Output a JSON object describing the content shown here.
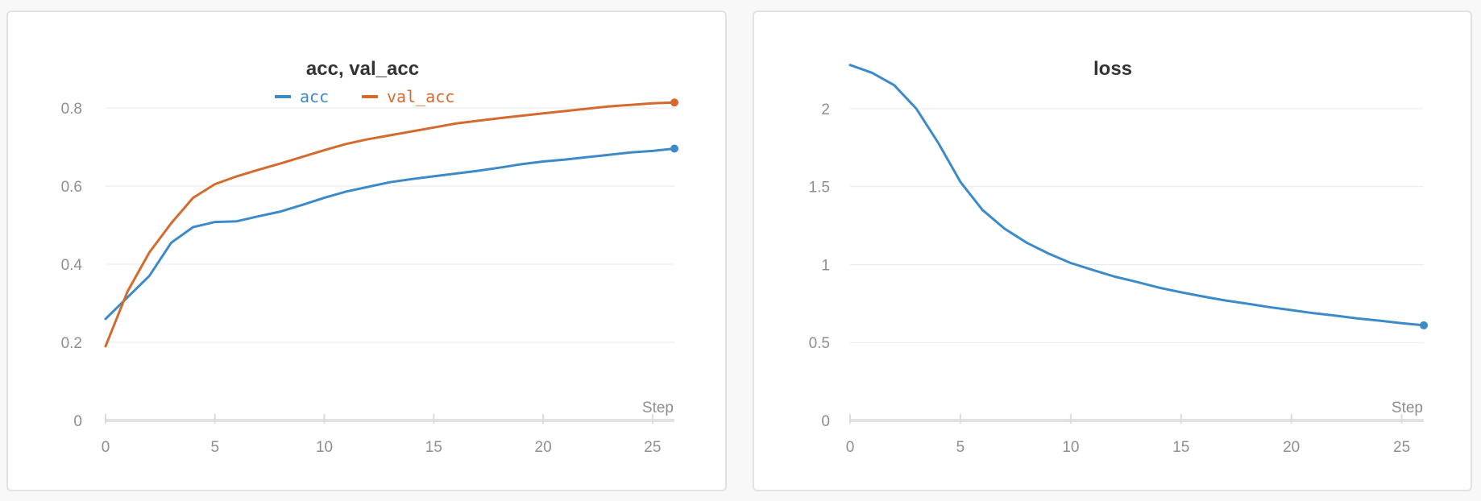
{
  "chart_data": [
    {
      "type": "line",
      "title": "acc, val_acc",
      "xlabel": "Step",
      "ylabel": "",
      "xlim": [
        0,
        26
      ],
      "ylim": [
        0,
        0.93
      ],
      "xticks": [
        0,
        5,
        10,
        15,
        20,
        25
      ],
      "yticks": [
        0,
        0.2,
        0.4,
        0.6,
        0.8
      ],
      "ytick_labels": [
        "0",
        "0.2",
        "0.4",
        "0.6",
        "0.8"
      ],
      "grid": true,
      "legend": "top",
      "x": [
        0,
        1,
        2,
        3,
        4,
        5,
        6,
        7,
        8,
        9,
        10,
        11,
        12,
        13,
        14,
        15,
        16,
        17,
        18,
        19,
        20,
        21,
        22,
        23,
        24,
        25,
        26
      ],
      "series": [
        {
          "name": "acc",
          "color": "#3d8ac9",
          "values": [
            0.26,
            0.315,
            0.37,
            0.455,
            0.495,
            0.508,
            0.51,
            0.523,
            0.535,
            0.552,
            0.57,
            0.586,
            0.598,
            0.61,
            0.618,
            0.625,
            0.632,
            0.639,
            0.647,
            0.656,
            0.663,
            0.668,
            0.674,
            0.68,
            0.686,
            0.69,
            0.696
          ]
        },
        {
          "name": "val_acc",
          "color": "#d56a2e",
          "values": [
            0.19,
            0.33,
            0.43,
            0.505,
            0.57,
            0.605,
            0.625,
            0.642,
            0.658,
            0.675,
            0.692,
            0.708,
            0.72,
            0.73,
            0.74,
            0.75,
            0.76,
            0.767,
            0.774,
            0.78,
            0.786,
            0.792,
            0.798,
            0.804,
            0.808,
            0.812,
            0.814
          ]
        }
      ]
    },
    {
      "type": "line",
      "title": "loss",
      "xlabel": "Step",
      "ylabel": "",
      "xlim": [
        0,
        26
      ],
      "ylim": [
        0,
        2.33
      ],
      "xticks": [
        0,
        5,
        10,
        15,
        20,
        25
      ],
      "yticks": [
        0,
        0.5,
        1,
        1.5,
        2
      ],
      "ytick_labels": [
        "0",
        "0.5",
        "1",
        "1.5",
        "2"
      ],
      "grid": true,
      "legend": "none",
      "x": [
        0,
        1,
        2,
        3,
        4,
        5,
        6,
        7,
        8,
        9,
        10,
        11,
        12,
        13,
        14,
        15,
        16,
        17,
        18,
        19,
        20,
        21,
        22,
        23,
        24,
        25,
        26
      ],
      "series": [
        {
          "name": "loss",
          "color": "#3d8ac9",
          "values": [
            2.28,
            2.23,
            2.15,
            2.0,
            1.78,
            1.53,
            1.35,
            1.23,
            1.14,
            1.07,
            1.01,
            0.965,
            0.922,
            0.888,
            0.852,
            0.822,
            0.795,
            0.77,
            0.749,
            0.727,
            0.708,
            0.688,
            0.672,
            0.654,
            0.64,
            0.624,
            0.61
          ]
        }
      ]
    }
  ]
}
